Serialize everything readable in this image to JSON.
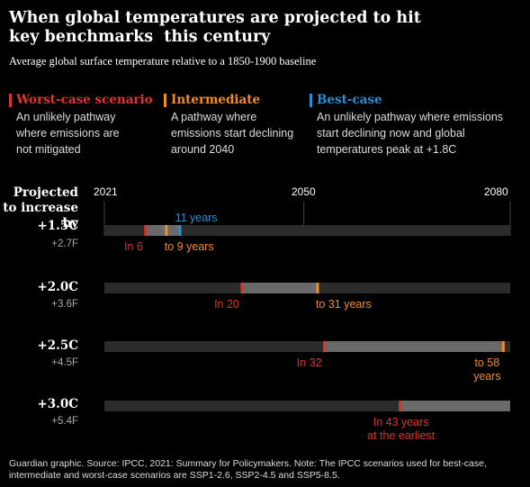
{
  "title": "When global temperatures are projected to hit key benchmarks  this century",
  "subtitle": "Average global surface temperature relative to a 1850-1900 baseline",
  "scenarios": [
    {
      "name": "Worst-case scenario",
      "color": "#e0332b",
      "desc": "An unlikely pathway where emissions are not mitigated"
    },
    {
      "name": "Intermediate",
      "color": "#f28c28",
      "desc": "A pathway where emissions start declining around 2040"
    },
    {
      "name": "Best-case",
      "color": "#2a8fd0",
      "desc": "An unlikely pathway where emissions start declining now and global temperatures peak at +1.8C"
    }
  ],
  "footer": "Guardian graphic. Source: IPCC, 2021: Summary for Policymakers. Note: The IPCC scenarios used for best-case, intermediate and worst-case scenarios are SSP1-2.6, SSP2-4.5 and SSP5-8.5.",
  "chart_data": {
    "type": "bar",
    "title": "When global temperatures are projected to hit key benchmarks  this century",
    "subtitle": "Average global surface temperature relative to a 1850-1900 baseline",
    "xlim": [
      2021,
      2080
    ],
    "x_ticks": [
      "2021",
      "2050",
      "2080"
    ],
    "row_header": "Projected to increase by",
    "rows": [
      {
        "label": "+1.5C",
        "sublabel": "+2.7F",
        "worst": 6,
        "intermediate": 9,
        "best": 11,
        "annotations": [
          {
            "text": "11 years",
            "series": "best",
            "position": "above"
          },
          {
            "text": "In 6",
            "series": "worst",
            "position": "below"
          },
          {
            "text": "to 9 years",
            "series": "intermediate",
            "position": "below"
          }
        ]
      },
      {
        "label": "+2.0C",
        "sublabel": "+3.6F",
        "worst": 20,
        "intermediate": 31,
        "best": null,
        "annotations": [
          {
            "text": "In 20",
            "series": "worst",
            "position": "below"
          },
          {
            "text": "to 31 years",
            "series": "intermediate",
            "position": "below"
          }
        ]
      },
      {
        "label": "+2.5C",
        "sublabel": "+4.5F",
        "worst": 32,
        "intermediate": 58,
        "best": null,
        "annotations": [
          {
            "text": "In 32",
            "series": "worst",
            "position": "below"
          },
          {
            "text": "to 58\nyears",
            "series": "intermediate",
            "position": "below"
          }
        ]
      },
      {
        "label": "+3.0C",
        "sublabel": "+5.4F",
        "worst": 43,
        "intermediate": null,
        "best": null,
        "annotations": [
          {
            "text": "In 43 years\nat the earliest",
            "series": "worst",
            "position": "below"
          }
        ]
      }
    ]
  }
}
